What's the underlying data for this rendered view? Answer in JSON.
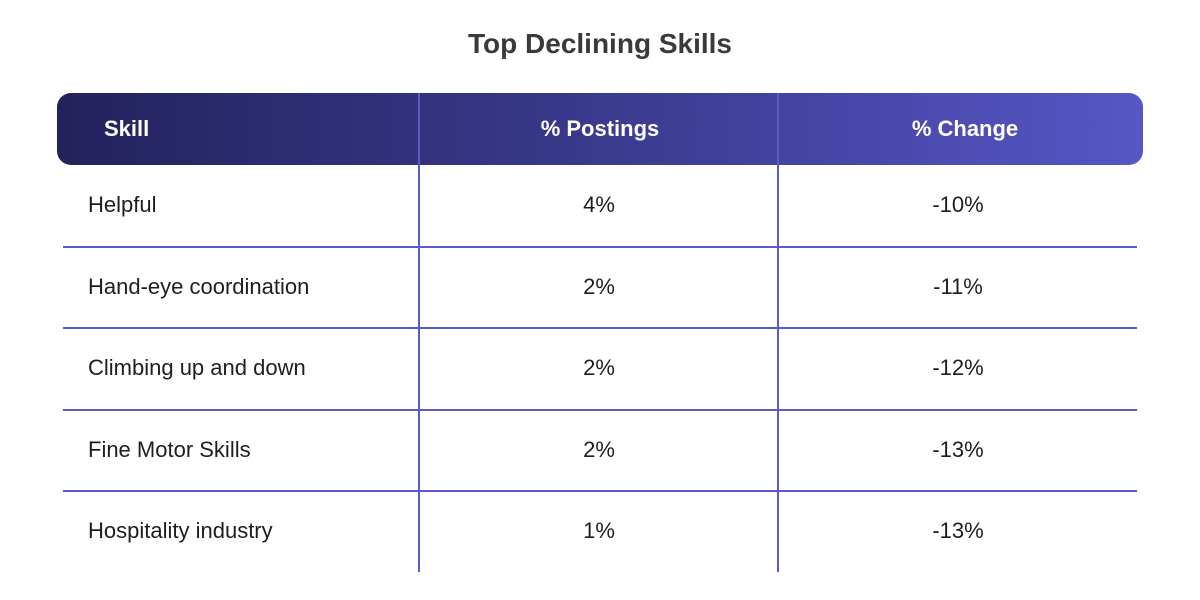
{
  "title": "Top Declining Skills",
  "table": {
    "header": [
      "Skill",
      "% Postings",
      "% Change"
    ],
    "rows": [
      [
        "Helpful",
        "4%",
        "-10%"
      ],
      [
        "Hand-eye coordination",
        "2%",
        "-11%"
      ],
      [
        "Climbing up and down",
        "2%",
        "-12%"
      ],
      [
        "Fine Motor Skills",
        "2%",
        "-13%"
      ],
      [
        "Hospitality industry",
        "1%",
        "-13%"
      ]
    ]
  }
}
